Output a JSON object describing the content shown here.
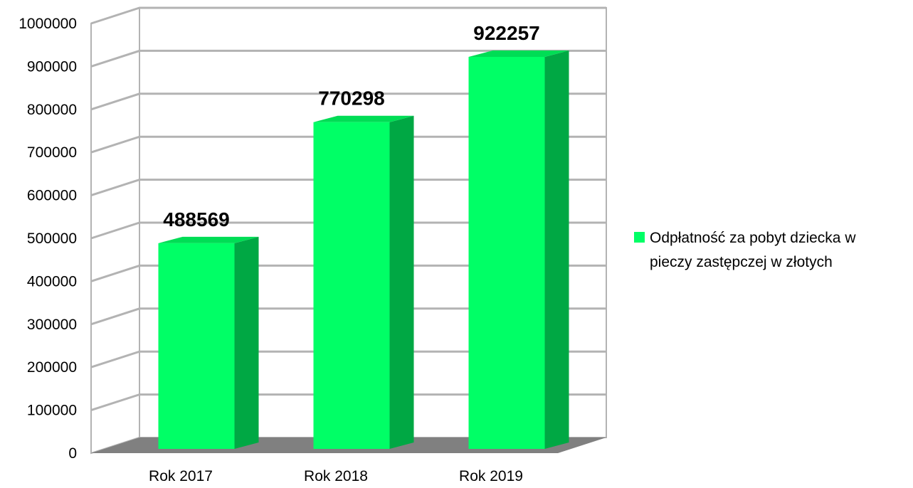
{
  "chart_data": {
    "type": "bar",
    "categories": [
      "Rok 2017",
      "Rok 2018",
      "Rok 2019"
    ],
    "series": [
      {
        "name": "Odpłatność za pobyt dziecka w pieczy zastępczej w złotych",
        "values": [
          488569,
          770298,
          922257
        ]
      }
    ],
    "data_labels": [
      "488569",
      "770298",
      "922257"
    ],
    "y_ticks": [
      "0",
      "100000",
      "200000",
      "300000",
      "400000",
      "500000",
      "600000",
      "700000",
      "800000",
      "900000",
      "1000000"
    ],
    "ylim": [
      0,
      1000000
    ],
    "grid": true,
    "legend": {
      "position": "right",
      "lines": [
        "Odpłatność za pobyt dziecka w",
        "pieczy zastępczej w złotych"
      ]
    },
    "colors": {
      "bar_front": "#00ff66",
      "bar_side": "#00a844",
      "bar_top": "#00dd55",
      "floor": "#808080",
      "grid": "#b3b3b3",
      "legend_swatch": "#00ff66"
    }
  }
}
